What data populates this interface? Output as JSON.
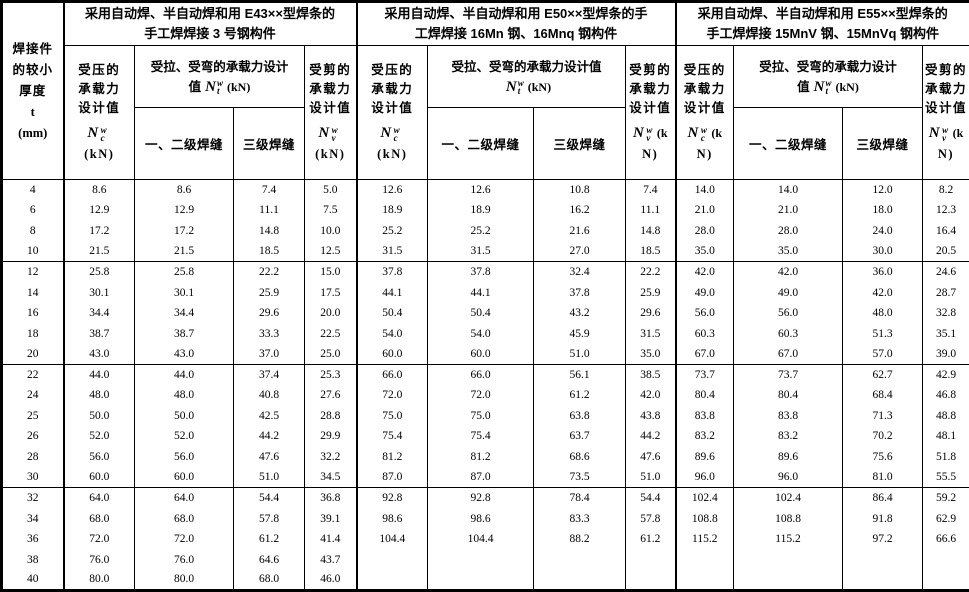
{
  "table": {
    "thickness_header": {
      "lines": [
        "焊接件",
        "的较小",
        "厚度"
      ],
      "symbol": "t",
      "unit": "(mm)"
    },
    "shared": {
      "weld12": "一、二级焊缝",
      "weld3": "三级焊缝"
    },
    "groups": [
      {
        "title_line1": "采用自动焊、半自动焊和用 E43××型焊条的",
        "title_line2": "手工焊焊接 3 号钢构件",
        "nc": {
          "labels": [
            "受压的",
            "承载力",
            "设计值"
          ],
          "sym_base": "N",
          "sym_sup": "w",
          "sym_sub": "c",
          "unit_inline": "",
          "unit_below": "(kN)"
        },
        "nt": {
          "line1": "受拉、受弯的承载力设计",
          "line2_prefix": "值",
          "sym_base": "N",
          "sym_sup": "w",
          "sym_sub": "t",
          "unit": "(kN)"
        },
        "nv": {
          "labels": [
            "受剪的",
            "承载力",
            "设计值"
          ],
          "sym_base": "N",
          "sym_sup": "w",
          "sym_sub": "v",
          "unit_inline": "",
          "unit_below": "(kN)"
        }
      },
      {
        "title_line1": "采用自动焊、半自动焊和用 E50××型焊条的手",
        "title_line2": "工焊焊接 16Mn 钢、16Mnq 钢构件",
        "nc": {
          "labels": [
            "受压的",
            "承载力",
            "设计值"
          ],
          "sym_base": "N",
          "sym_sup": "w",
          "sym_sub": "c",
          "unit_inline": "",
          "unit_below": "(kN)"
        },
        "nt": {
          "line1": "受拉、受弯的承载力设计值",
          "line2_prefix": "",
          "sym_base": "N",
          "sym_sup": "w",
          "sym_sub": "t",
          "unit": "(kN)"
        },
        "nv": {
          "labels": [
            "受剪的",
            "承载力",
            "设计值"
          ],
          "sym_base": "N",
          "sym_sup": "w",
          "sym_sub": "v",
          "unit_inline": "(k",
          "unit_below": "N)"
        }
      },
      {
        "title_line1": "采用自动焊、半自动焊和用 E55××型焊条的",
        "title_line2": "手工焊焊接 15MnV 钢、15MnVq 钢构件",
        "nc": {
          "labels": [
            "受压的",
            "承载力",
            "设计值"
          ],
          "sym_base": "N",
          "sym_sup": "w",
          "sym_sub": "c",
          "unit_inline": "(k",
          "unit_below": "N)"
        },
        "nt": {
          "line1": "受拉、受弯的承载力设计",
          "line2_prefix": "值",
          "sym_base": "N",
          "sym_sup": "w",
          "sym_sub": "t",
          "unit": "(kN)"
        },
        "nv": {
          "labels": [
            "受剪的",
            "承载力",
            "设计值"
          ],
          "sym_base": "N",
          "sym_sup": "w",
          "sym_sub": "v",
          "unit_inline": "(k",
          "unit_below": "N)"
        }
      }
    ],
    "rows": [
      {
        "t": "4",
        "thick_top": false,
        "values": [
          "8.6",
          "8.6",
          "7.4",
          "5.0",
          "12.6",
          "12.6",
          "10.8",
          "7.4",
          "14.0",
          "14.0",
          "12.0",
          "8.2"
        ]
      },
      {
        "t": "6",
        "thick_top": false,
        "values": [
          "12.9",
          "12.9",
          "11.1",
          "7.5",
          "18.9",
          "18.9",
          "16.2",
          "11.1",
          "21.0",
          "21.0",
          "18.0",
          "12.3"
        ]
      },
      {
        "t": "8",
        "thick_top": false,
        "values": [
          "17.2",
          "17.2",
          "14.8",
          "10.0",
          "25.2",
          "25.2",
          "21.6",
          "14.8",
          "28.0",
          "28.0",
          "24.0",
          "16.4"
        ]
      },
      {
        "t": "10",
        "thick_top": false,
        "values": [
          "21.5",
          "21.5",
          "18.5",
          "12.5",
          "31.5",
          "31.5",
          "27.0",
          "18.5",
          "35.0",
          "35.0",
          "30.0",
          "20.5"
        ]
      },
      {
        "t": "12",
        "thick_top": true,
        "values": [
          "25.8",
          "25.8",
          "22.2",
          "15.0",
          "37.8",
          "37.8",
          "32.4",
          "22.2",
          "42.0",
          "42.0",
          "36.0",
          "24.6"
        ]
      },
      {
        "t": "14",
        "thick_top": false,
        "values": [
          "30.1",
          "30.1",
          "25.9",
          "17.5",
          "44.1",
          "44.1",
          "37.8",
          "25.9",
          "49.0",
          "49.0",
          "42.0",
          "28.7"
        ]
      },
      {
        "t": "16",
        "thick_top": false,
        "values": [
          "34.4",
          "34.4",
          "29.6",
          "20.0",
          "50.4",
          "50.4",
          "43.2",
          "29.6",
          "56.0",
          "56.0",
          "48.0",
          "32.8"
        ]
      },
      {
        "t": "18",
        "thick_top": false,
        "values": [
          "38.7",
          "38.7",
          "33.3",
          "22.5",
          "54.0",
          "54.0",
          "45.9",
          "31.5",
          "60.3",
          "60.3",
          "51.3",
          "35.1"
        ]
      },
      {
        "t": "20",
        "thick_top": false,
        "values": [
          "43.0",
          "43.0",
          "37.0",
          "25.0",
          "60.0",
          "60.0",
          "51.0",
          "35.0",
          "67.0",
          "67.0",
          "57.0",
          "39.0"
        ]
      },
      {
        "t": "22",
        "thick_top": true,
        "values": [
          "44.0",
          "44.0",
          "37.4",
          "25.3",
          "66.0",
          "66.0",
          "56.1",
          "38.5",
          "73.7",
          "73.7",
          "62.7",
          "42.9"
        ]
      },
      {
        "t": "24",
        "thick_top": false,
        "values": [
          "48.0",
          "48.0",
          "40.8",
          "27.6",
          "72.0",
          "72.0",
          "61.2",
          "42.0",
          "80.4",
          "80.4",
          "68.4",
          "46.8"
        ]
      },
      {
        "t": "25",
        "thick_top": false,
        "values": [
          "50.0",
          "50.0",
          "42.5",
          "28.8",
          "75.0",
          "75.0",
          "63.8",
          "43.8",
          "83.8",
          "83.8",
          "71.3",
          "48.8"
        ]
      },
      {
        "t": "26",
        "thick_top": false,
        "values": [
          "52.0",
          "52.0",
          "44.2",
          "29.9",
          "75.4",
          "75.4",
          "63.7",
          "44.2",
          "83.2",
          "83.2",
          "70.2",
          "48.1"
        ]
      },
      {
        "t": "28",
        "thick_top": false,
        "values": [
          "56.0",
          "56.0",
          "47.6",
          "32.2",
          "81.2",
          "81.2",
          "68.6",
          "47.6",
          "89.6",
          "89.6",
          "75.6",
          "51.8"
        ]
      },
      {
        "t": "30",
        "thick_top": false,
        "values": [
          "60.0",
          "60.0",
          "51.0",
          "34.5",
          "87.0",
          "87.0",
          "73.5",
          "51.0",
          "96.0",
          "96.0",
          "81.0",
          "55.5"
        ]
      },
      {
        "t": "32",
        "thick_top": true,
        "values": [
          "64.0",
          "64.0",
          "54.4",
          "36.8",
          "92.8",
          "92.8",
          "78.4",
          "54.4",
          "102.4",
          "102.4",
          "86.4",
          "59.2"
        ]
      },
      {
        "t": "34",
        "thick_top": false,
        "values": [
          "68.0",
          "68.0",
          "57.8",
          "39.1",
          "98.6",
          "98.6",
          "83.3",
          "57.8",
          "108.8",
          "108.8",
          "91.8",
          "62.9"
        ]
      },
      {
        "t": "36",
        "thick_top": false,
        "values": [
          "72.0",
          "72.0",
          "61.2",
          "41.4",
          "104.4",
          "104.4",
          "88.2",
          "61.2",
          "115.2",
          "115.2",
          "97.2",
          "66.6"
        ]
      },
      {
        "t": "38",
        "thick_top": false,
        "values": [
          "76.0",
          "76.0",
          "64.6",
          "43.7",
          "",
          "",
          "",
          "",
          "",
          "",
          "",
          ""
        ]
      },
      {
        "t": "40",
        "thick_top": false,
        "values": [
          "80.0",
          "80.0",
          "68.0",
          "46.0",
          "",
          "",
          "",
          "",
          "",
          "",
          "",
          ""
        ]
      }
    ]
  }
}
